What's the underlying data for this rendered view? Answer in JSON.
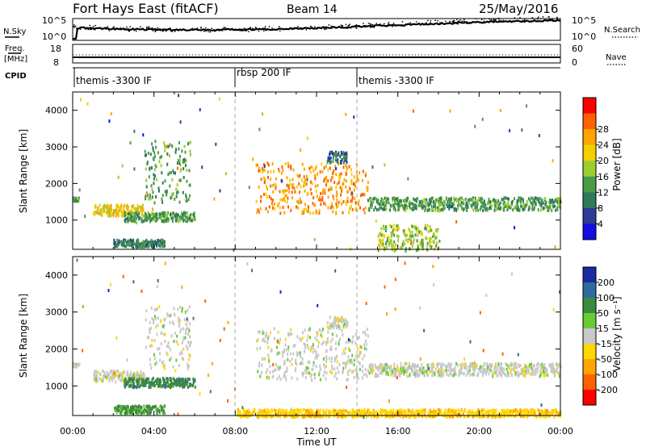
{
  "header": {
    "title": "Fort Hays East (fitACF)",
    "beam": "Beam 14",
    "date": "25/May/2016"
  },
  "top_panels": {
    "nsky_label": "N.Sky",
    "nsky_ticks": [
      "10^5",
      "10^0"
    ],
    "nsearch_label": "N.Search",
    "nsearch_ticks": [
      "10^5",
      "10^0"
    ],
    "freq_label_1": "Freq.",
    "freq_label_2": "[MHz]",
    "freq_ticks": [
      "18",
      "8"
    ],
    "nave_label": "Nave",
    "nave_ticks": [
      "60",
      "0"
    ],
    "cpid_label": "CPID",
    "cpid_segments": [
      {
        "label": "themis -3300 IF",
        "start": 0
      },
      {
        "label": "rbsp 200 IF",
        "start": 8
      },
      {
        "label": "themis -3300 IF",
        "start": 14
      }
    ]
  },
  "axes": {
    "xlabel": "Time UT",
    "x_ticks": [
      "00:00",
      "04:00",
      "08:00",
      "12:00",
      "16:00",
      "20:00",
      "00:00"
    ],
    "ylabel": "Slant Range [km]",
    "y_ticks": [
      "1000",
      "2000",
      "3000",
      "4000"
    ]
  },
  "power_colorbar": {
    "label": "Power [dB]",
    "ticks": [
      "4",
      "8",
      "12",
      "16",
      "20",
      "24",
      "28"
    ],
    "colors": [
      "#1010e0",
      "#2a3c96",
      "#2f7a5a",
      "#4a9a4a",
      "#9acd32",
      "#f2d000",
      "#ffa500",
      "#ff6000",
      "#ff0000"
    ]
  },
  "velocity_colorbar": {
    "label": "Velocity [m s⁻¹]",
    "ticks": [
      "200",
      "100",
      "50",
      "15",
      "-15",
      "-50",
      "-100",
      "-200"
    ],
    "colors": [
      "#1a2aa0",
      "#2e6aa0",
      "#3c8a3c",
      "#66cc33",
      "#c8c8c8",
      "#ffd700",
      "#ffa500",
      "#ff6000",
      "#ff0000"
    ]
  },
  "chart_data": [
    {
      "type": "heatmap",
      "name": "power",
      "xlabel": "Time UT",
      "ylabel": "Slant Range [km]",
      "xlim": [
        0,
        24
      ],
      "ylim": [
        200,
        4500
      ],
      "colorbar": "Power [dB]",
      "features": [
        {
          "t": [
            0.0,
            0.3
          ],
          "r": [
            1550,
            1650
          ],
          "v": 12
        },
        {
          "t": [
            1.0,
            3.5
          ],
          "r": [
            1150,
            1450
          ],
          "v": 20
        },
        {
          "t": [
            3.5,
            5.8
          ],
          "r": [
            1500,
            3200
          ],
          "v": 12
        },
        {
          "t": [
            2.5,
            6.0
          ],
          "r": [
            1000,
            1250
          ],
          "v": 12
        },
        {
          "t": [
            2.0,
            4.5
          ],
          "r": [
            300,
            500
          ],
          "v": 10
        },
        {
          "t": [
            9.0,
            14.5
          ],
          "r": [
            1200,
            2600
          ],
          "v": 24
        },
        {
          "t": [
            14.5,
            24.0
          ],
          "r": [
            1300,
            1650
          ],
          "v": 12
        },
        {
          "t": [
            15.0,
            18.0
          ],
          "r": [
            200,
            900
          ],
          "v": 16
        },
        {
          "t": [
            12.5,
            13.5
          ],
          "r": [
            2600,
            2900
          ],
          "v": 8
        }
      ]
    },
    {
      "type": "heatmap",
      "name": "velocity",
      "xlabel": "Time UT",
      "ylabel": "Slant Range [km]",
      "xlim": [
        0,
        24
      ],
      "ylim": [
        200,
        4500
      ],
      "colorbar": "Velocity [m s⁻¹]",
      "features": [
        {
          "t": [
            0.0,
            0.3
          ],
          "r": [
            1550,
            1650
          ],
          "v": 0
        },
        {
          "t": [
            1.0,
            3.5
          ],
          "r": [
            1150,
            1450
          ],
          "v": 0
        },
        {
          "t": [
            3.5,
            5.8
          ],
          "r": [
            1500,
            3200
          ],
          "v": 0
        },
        {
          "t": [
            2.5,
            6.0
          ],
          "r": [
            1000,
            1250
          ],
          "v": 60
        },
        {
          "t": [
            2.0,
            4.5
          ],
          "r": [
            300,
            500
          ],
          "v": 40
        },
        {
          "t": [
            9.0,
            14.5
          ],
          "r": [
            1200,
            2600
          ],
          "v": 0
        },
        {
          "t": [
            14.5,
            24.0
          ],
          "r": [
            1300,
            1650
          ],
          "v": 0
        },
        {
          "t": [
            8.0,
            24.0
          ],
          "r": [
            200,
            400
          ],
          "v": -40
        },
        {
          "t": [
            12.5,
            13.5
          ],
          "r": [
            2600,
            2900
          ],
          "v": 0
        }
      ]
    }
  ]
}
